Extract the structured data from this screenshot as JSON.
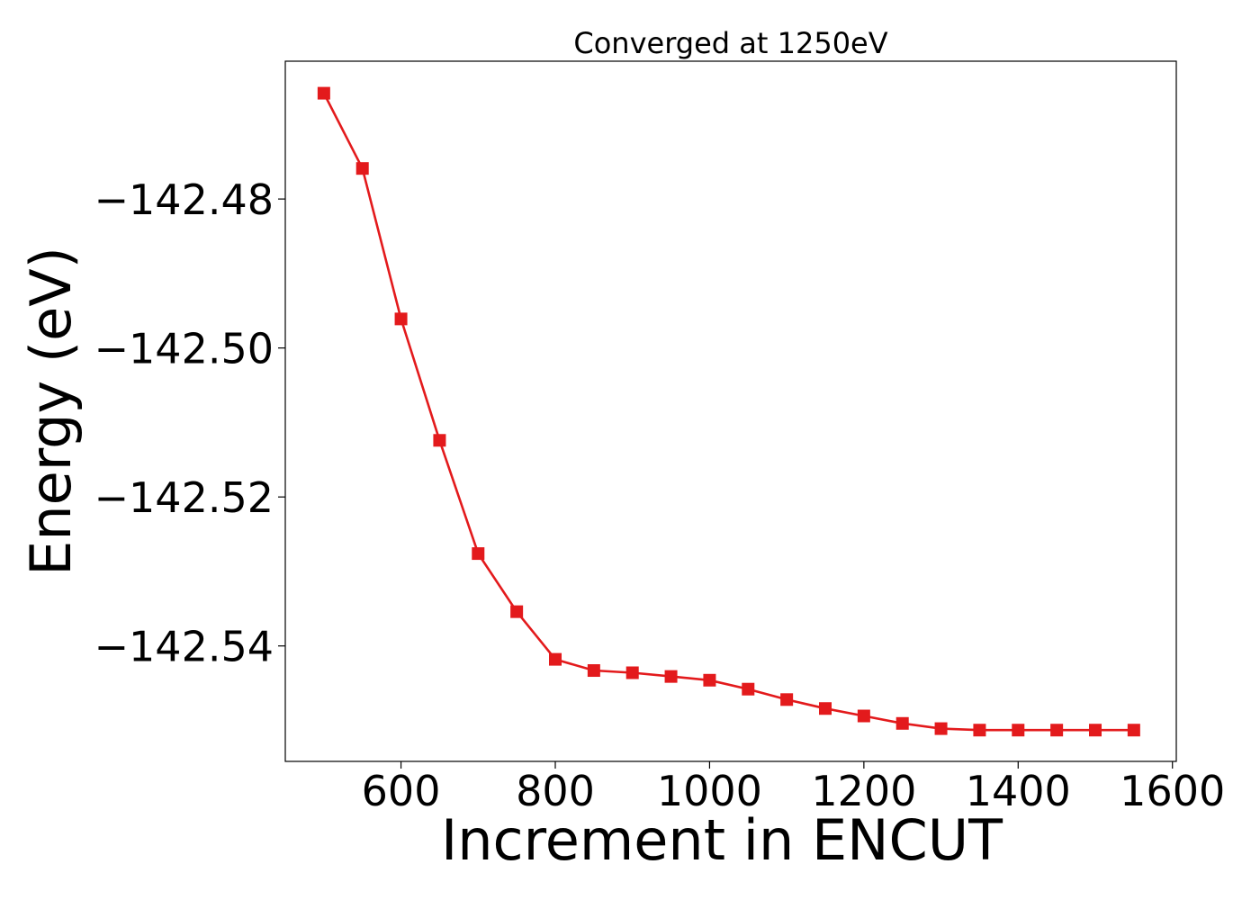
{
  "chart_data": {
    "type": "line",
    "title": "Converged at 1250eV",
    "xlabel": "Increment in ENCUT",
    "ylabel": "Energy (eV)",
    "xlim": [
      450,
      1605
    ],
    "ylim": [
      -142.5555,
      -142.4615
    ],
    "xticks": [
      600,
      800,
      1000,
      1200,
      1400,
      1600
    ],
    "yticks": [
      -142.48,
      -142.5,
      -142.52,
      -142.54
    ],
    "xtick_labels": [
      "600",
      "800",
      "1000",
      "1200",
      "1400",
      "1600"
    ],
    "ytick_labels": [
      "−142.48",
      "−142.50",
      "−142.52",
      "−142.54"
    ],
    "grid": false,
    "series": [
      {
        "color": "#e31a1c",
        "marker": "square",
        "x": [
          500,
          550,
          600,
          650,
          700,
          750,
          800,
          850,
          900,
          950,
          1000,
          1050,
          1100,
          1150,
          1200,
          1250,
          1300,
          1350,
          1400,
          1450,
          1500,
          1550
        ],
        "y": [
          -142.4658,
          -142.4759,
          -142.4961,
          -142.5124,
          -142.5276,
          -142.5354,
          -142.5418,
          -142.5433,
          -142.5436,
          -142.5441,
          -142.5446,
          -142.5458,
          -142.5472,
          -142.5484,
          -142.5494,
          -142.5504,
          -142.5511,
          -142.5513,
          -142.5513,
          -142.5513,
          -142.5513,
          -142.5513
        ]
      }
    ]
  }
}
